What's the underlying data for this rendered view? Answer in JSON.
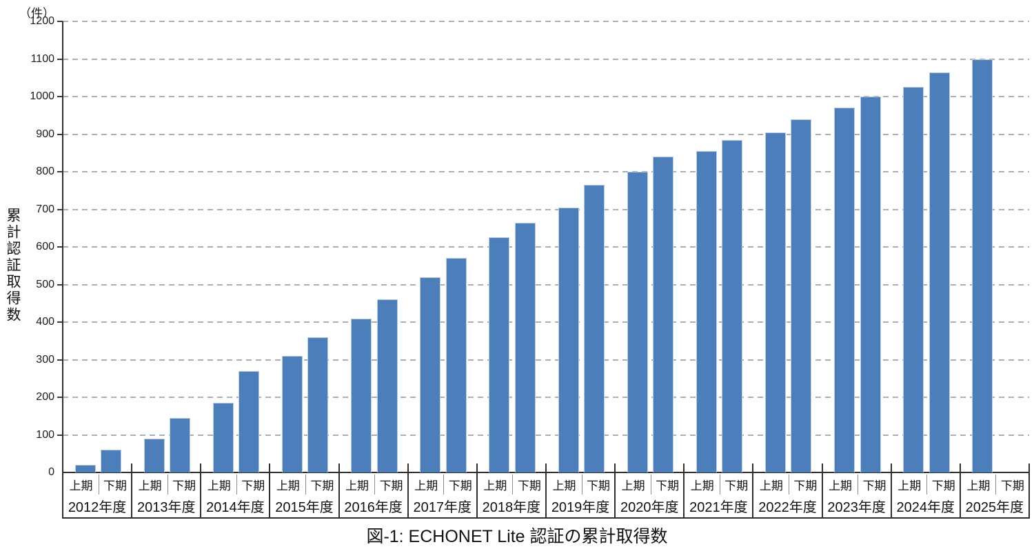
{
  "meta": {
    "unit_label": "（件）",
    "y_axis_label": "累計認証取得数",
    "caption": "図-1: ECHONET Lite 認証の累計取得数"
  },
  "chart_data": {
    "type": "bar",
    "title": "図-1: ECHONET Lite 認証の累計取得数",
    "xlabel": "",
    "ylabel": "累計認証取得数",
    "unit": "件",
    "ylim": [
      0,
      1200
    ],
    "ytick_step": 100,
    "grid": "horizontal-dashed",
    "legend_position": "none",
    "bar_color": "#4d7ebc",
    "bar_border_color": "#b9cde6",
    "period_labels": {
      "first_half": "上期",
      "second_half": "下期"
    },
    "categories": [
      "2012年度",
      "2013年度",
      "2014年度",
      "2015年度",
      "2016年度",
      "2017年度",
      "2018年度",
      "2019年度",
      "2020年度",
      "2021年度",
      "2022年度",
      "2023年度",
      "2024年度",
      "2025年度"
    ],
    "series": [
      {
        "name": "上期",
        "values": [
          20,
          90,
          185,
          310,
          410,
          520,
          625,
          705,
          800,
          855,
          905,
          970,
          1025,
          1100
        ]
      },
      {
        "name": "下期",
        "values": [
          60,
          145,
          270,
          360,
          460,
          570,
          665,
          765,
          840,
          885,
          940,
          1000,
          1065,
          null
        ]
      }
    ]
  }
}
